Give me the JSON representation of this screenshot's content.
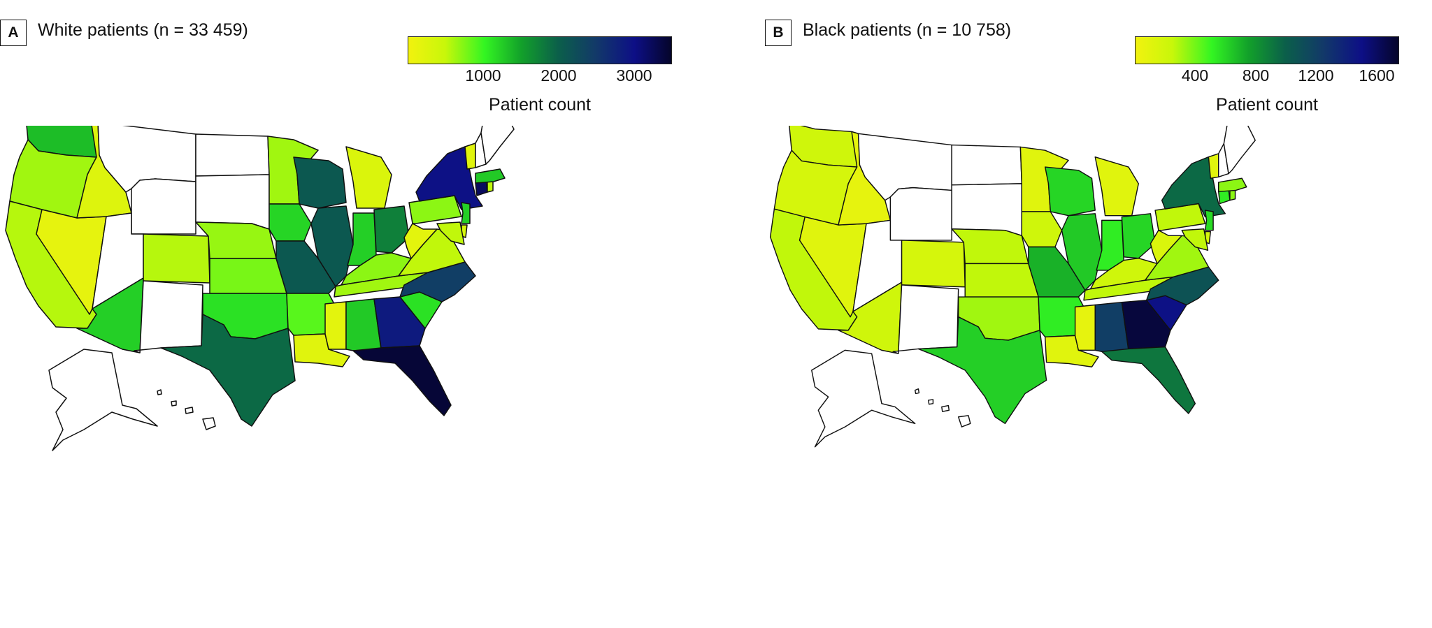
{
  "panels": [
    {
      "letter": "A",
      "title": "White patients (n = 33 459)",
      "colorbar": {
        "ticks": [
          "1000",
          "2000",
          "3000"
        ],
        "label": "Patient count",
        "min": 0,
        "max": 3500
      }
    },
    {
      "letter": "B",
      "title": "Black patients  (n = 10 758)",
      "colorbar": {
        "ticks": [
          "400",
          "800",
          "1200",
          "1600"
        ],
        "label": "Patient count",
        "min": 0,
        "max": 1750
      }
    }
  ],
  "colorscale": [
    "#f2f20f",
    "#c8f70a",
    "#33f522",
    "#12a02a",
    "#0b5f4a",
    "#123a68",
    "#0d0f86",
    "#05052a"
  ],
  "no_data_color": "#ffffff",
  "state_levels": {
    "white": {
      "WA": 0.38,
      "OR": 0.18,
      "CA": 0.16,
      "NV": 0.04,
      "ID": 0.07,
      "MT": -1,
      "WY": -1,
      "UT": -1,
      "AZ": 0.35,
      "CO": 0.16,
      "NM": -1,
      "ND": -1,
      "SD": -1,
      "NE": 0.19,
      "KS": 0.22,
      "OK": 0.32,
      "TX": 0.55,
      "MN": 0.18,
      "IA": 0.34,
      "MO": 0.6,
      "AR": 0.25,
      "LA": 0.06,
      "WI": 0.6,
      "IL": 0.6,
      "MI": 0.08,
      "IN": 0.35,
      "OH": 0.5,
      "KY": 0.2,
      "TN": 0.18,
      "MS": 0.05,
      "AL": 0.36,
      "GA": 0.82,
      "FL": 0.98,
      "SC": 0.32,
      "NC": 0.7,
      "VA": 0.15,
      "WV": 0.05,
      "PA": 0.2,
      "NY": 0.85,
      "NJ": 0.35,
      "DE": 0.1,
      "MD": 0.15,
      "CT": 0.92,
      "RI": 0.15,
      "MA": 0.36,
      "VT": 0.06,
      "NH": -1,
      "ME": -1
    },
    "black": {
      "WA": 0.12,
      "OR": 0.1,
      "CA": 0.15,
      "NV": 0.06,
      "ID": 0.04,
      "MT": -1,
      "WY": -1,
      "UT": -1,
      "AZ": 0.12,
      "CO": 0.1,
      "NM": -1,
      "ND": -1,
      "SD": -1,
      "NE": 0.15,
      "KS": 0.15,
      "OK": 0.18,
      "TX": 0.35,
      "MN": 0.06,
      "IA": 0.12,
      "MO": 0.4,
      "AR": 0.3,
      "LA": 0.06,
      "WI": 0.34,
      "IL": 0.36,
      "MI": 0.06,
      "IN": 0.3,
      "OH": 0.34,
      "KY": 0.12,
      "TN": 0.15,
      "MS": 0.04,
      "AL": 0.7,
      "GA": 0.97,
      "FL": 0.52,
      "SC": 0.85,
      "NC": 0.62,
      "VA": 0.18,
      "WV": 0.08,
      "PA": 0.15,
      "NY": 0.55,
      "NJ": 0.33,
      "DE": 0.1,
      "MD": 0.15,
      "CT": 0.3,
      "RI": 0.2,
      "MA": 0.2,
      "VT": 0.06,
      "NH": -1,
      "ME": -1
    }
  }
}
